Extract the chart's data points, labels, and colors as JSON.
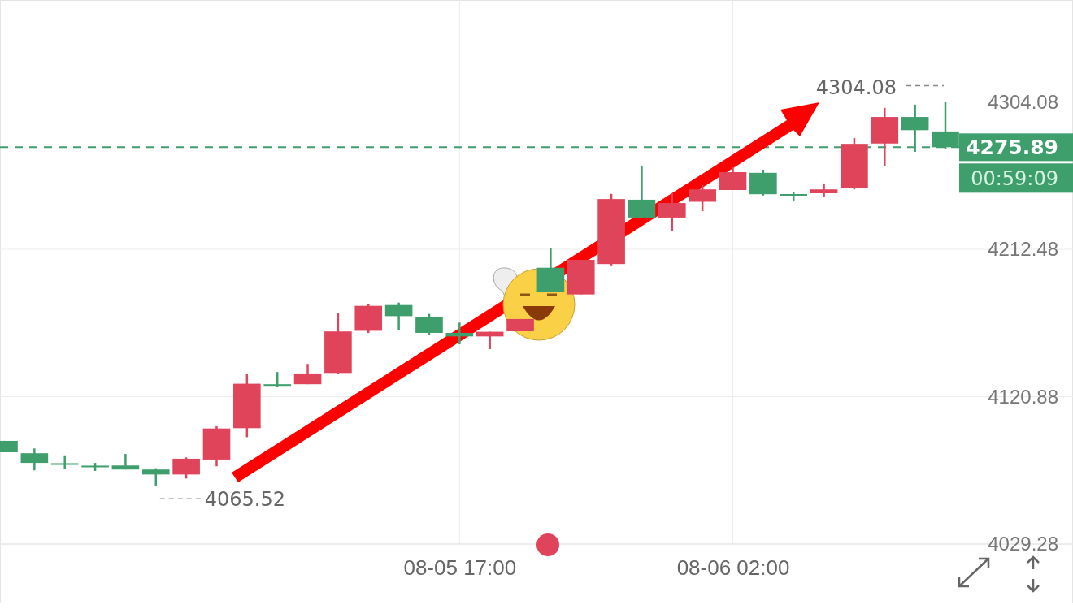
{
  "chart_data": {
    "type": "candlestick",
    "categories": [
      null,
      null,
      null,
      null,
      null,
      null,
      null,
      null,
      null,
      null,
      null,
      null,
      null,
      null,
      null,
      "08-05 17:00",
      null,
      null,
      null,
      null,
      null,
      null,
      null,
      null,
      "08-06 02:00",
      null,
      null,
      null,
      null,
      null,
      null,
      null
    ],
    "ohlc": [
      [
        4093.4,
        4093.4,
        4086.3,
        4086.3
      ],
      [
        4085.7,
        4088.7,
        4075.1,
        4079.7
      ],
      [
        4079.5,
        4084.4,
        4076.1,
        4079.0
      ],
      [
        4078.0,
        4079.7,
        4074.7,
        4077.5
      ],
      [
        4078.1,
        4085.3,
        4075.6,
        4075.6
      ],
      [
        4075.6,
        4076.4,
        4065.52,
        4072.5
      ],
      [
        4072.5,
        4083.1,
        4070.0,
        4082.3
      ],
      [
        4081.8,
        4102.5,
        4077.6,
        4101.1
      ],
      [
        4101.3,
        4135.0,
        4095.7,
        4128.9
      ],
      [
        4128.6,
        4136.2,
        4127.2,
        4128.4
      ],
      [
        4128.6,
        4141.2,
        4128.6,
        4135.3
      ],
      [
        4135.6,
        4172.6,
        4134.9,
        4161.4
      ],
      [
        4161.8,
        4178.2,
        4160.5,
        4177.3
      ],
      [
        4177.8,
        4179.3,
        4162.5,
        4170.9
      ],
      [
        4170.6,
        4172.3,
        4159.1,
        4160.5
      ],
      [
        4160.5,
        4166.9,
        4153.4,
        4158.3
      ],
      [
        4158.3,
        4161.2,
        4150.4,
        4161.2
      ],
      [
        4161.5,
        4169.1,
        4161.5,
        4169.1
      ],
      [
        4201.0,
        4213.5,
        4185.7,
        4186.0
      ],
      [
        4184.4,
        4205.9,
        4184.4,
        4205.9
      ],
      [
        4203.3,
        4246.9,
        4202.5,
        4243.7
      ],
      [
        4243.3,
        4264.5,
        4232.2,
        4232.2
      ],
      [
        4232.2,
        4247.2,
        4223.7,
        4241.2
      ],
      [
        4242.0,
        4252.3,
        4236.2,
        4249.7
      ],
      [
        4249.3,
        4263.5,
        4249.3,
        4260.4
      ],
      [
        4260.0,
        4261.9,
        4245.9,
        4246.7
      ],
      [
        4246.8,
        4248.3,
        4242.2,
        4246.5
      ],
      [
        4247.3,
        4253.4,
        4245.3,
        4249.7
      ],
      [
        4250.7,
        4281.6,
        4249.7,
        4278.0
      ],
      [
        4278.2,
        4300.4,
        4264.0,
        4294.7
      ],
      [
        4294.7,
        4302.4,
        4273.0,
        4286.5
      ],
      [
        4285.7,
        4304.08,
        4274.6,
        4275.89
      ]
    ],
    "colors": [
      "#3e9e6c",
      "#3e9e6c",
      "#3e9e6c",
      "#3e9e6c",
      "#3e9e6c",
      "#3e9e6c",
      "#e0445a",
      "#e0445a",
      "#e0445a",
      "#3e9e6c",
      "#e0445a",
      "#e0445a",
      "#e0445a",
      "#3e9e6c",
      "#3e9e6c",
      "#3e9e6c",
      "#e0445a",
      "#e0445a",
      "#3e9e6c",
      "#e0445a",
      "#e0445a",
      "#3e9e6c",
      "#e0445a",
      "#e0445a",
      "#e0445a",
      "#3e9e6c",
      "#3e9e6c",
      "#e0445a",
      "#e0445a",
      "#e0445a",
      "#3e9e6c",
      "#3e9e6c"
    ],
    "ylim": [
      4029.28,
      4367.4
    ],
    "yticks": [
      4029.28,
      4120.88,
      4212.48,
      4304.08
    ],
    "grid": true,
    "ref_lines": [
      {
        "axis": "y",
        "value": 4275.89,
        "label": "4275.89",
        "color": "#3e9e6c",
        "line_style": "dashed"
      }
    ],
    "annotations": [
      "4304.08",
      "4065.52",
      "00:59:09"
    ]
  }
}
